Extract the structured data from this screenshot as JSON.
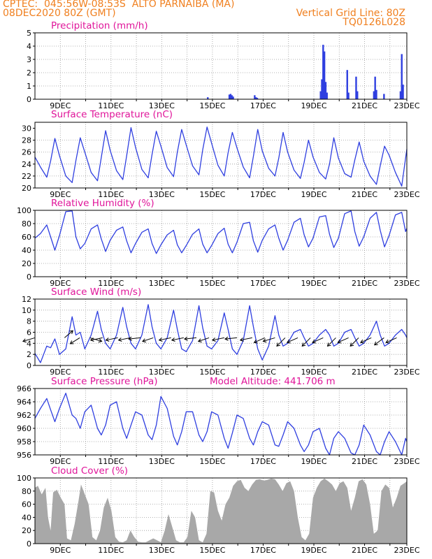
{
  "header": {
    "line1": "CPTEC:  045:56W-08:53S  ALTO PARNAIBA (MA)",
    "line2": "08DEC2020 80Z (GMT)",
    "grid_note": "Vertical Grid Line: 80Z",
    "code": "TQ0126L028"
  },
  "colors": {
    "header": "#f08020",
    "title": "#e0159a",
    "series": "#2f3fe0",
    "cloud": "#a8a8a8",
    "arrow": "#000000"
  },
  "x_axis": {
    "start": "08DEC2020 08Z",
    "end": "23DEC2020",
    "tick_labels": [
      "9DEC",
      "11DEC",
      "13DEC",
      "15DEC",
      "17DEC",
      "19DEC",
      "21DEC",
      "23DEC"
    ],
    "tick_days": [
      9,
      11,
      13,
      15,
      17,
      19,
      21,
      23
    ]
  },
  "chart_data": [
    {
      "id": "precip",
      "type": "bar",
      "title": "Precipitation (mm/h)",
      "ylim": [
        0,
        5
      ],
      "yticks": [
        0,
        1,
        2,
        3,
        4,
        5
      ],
      "x_unit": "day of Dec 2020",
      "bars": [
        {
          "x": 15.15,
          "y": 0.15
        },
        {
          "x": 16.0,
          "y": 0.35
        },
        {
          "x": 16.05,
          "y": 0.4
        },
        {
          "x": 16.1,
          "y": 0.3
        },
        {
          "x": 16.15,
          "y": 0.2
        },
        {
          "x": 17.0,
          "y": 0.3
        },
        {
          "x": 17.05,
          "y": 0.15
        },
        {
          "x": 17.1,
          "y": 0.1
        },
        {
          "x": 19.6,
          "y": 0.6
        },
        {
          "x": 19.65,
          "y": 1.5
        },
        {
          "x": 19.7,
          "y": 4.1
        },
        {
          "x": 19.75,
          "y": 3.6
        },
        {
          "x": 19.8,
          "y": 1.3
        },
        {
          "x": 19.85,
          "y": 0.5
        },
        {
          "x": 20.65,
          "y": 2.2
        },
        {
          "x": 20.7,
          "y": 0.5
        },
        {
          "x": 21.0,
          "y": 1.7
        },
        {
          "x": 21.05,
          "y": 0.6
        },
        {
          "x": 21.7,
          "y": 0.6
        },
        {
          "x": 21.75,
          "y": 1.7
        },
        {
          "x": 21.8,
          "y": 0.7
        },
        {
          "x": 22.1,
          "y": 0.4
        },
        {
          "x": 22.75,
          "y": 0.6
        },
        {
          "x": 22.8,
          "y": 3.4
        },
        {
          "x": 22.85,
          "y": 1.1
        }
      ]
    },
    {
      "id": "temp",
      "type": "line",
      "title": "Surface Temperature (nC)",
      "ylim": [
        20,
        31
      ],
      "yticks": [
        20,
        22,
        24,
        26,
        28,
        30
      ],
      "x": [
        8.33,
        8.55,
        8.8,
        8.95,
        9.12,
        9.3,
        9.55,
        9.8,
        9.95,
        10.12,
        10.3,
        10.55,
        10.8,
        10.95,
        11.12,
        11.3,
        11.55,
        11.8,
        11.95,
        12.12,
        12.3,
        12.55,
        12.8,
        12.95,
        13.12,
        13.3,
        13.55,
        13.8,
        13.95,
        14.12,
        14.3,
        14.55,
        14.8,
        14.95,
        15.12,
        15.3,
        15.55,
        15.8,
        15.95,
        16.12,
        16.3,
        16.55,
        16.8,
        16.95,
        17.12,
        17.3,
        17.55,
        17.8,
        17.95,
        18.12,
        18.3,
        18.55,
        18.8,
        18.95,
        19.12,
        19.3,
        19.55,
        19.8,
        19.95,
        20.12,
        20.3,
        20.55,
        20.8,
        20.95,
        21.12,
        21.3,
        21.55,
        21.8,
        21.95,
        22.12,
        22.3,
        22.55,
        22.8,
        22.95,
        23.0
      ],
      "y": [
        25.2,
        23.5,
        21.8,
        24.5,
        28.3,
        25.4,
        22.0,
        20.9,
        24.6,
        28.4,
        26.0,
        22.6,
        21.2,
        25.1,
        29.6,
        26.3,
        22.9,
        21.4,
        25.4,
        30.1,
        26.8,
        23.1,
        21.7,
        25.6,
        29.5,
        27.0,
        23.4,
        21.9,
        26.0,
        29.8,
        27.2,
        23.7,
        22.2,
        26.4,
        30.2,
        27.5,
        23.8,
        22.0,
        25.9,
        29.3,
        26.7,
        23.5,
        21.7,
        25.3,
        29.8,
        26.2,
        23.3,
        22.0,
        25.0,
        29.3,
        26.0,
        23.0,
        21.6,
        24.3,
        28.0,
        25.2,
        22.6,
        21.5,
        24.0,
        28.4,
        25.0,
        22.4,
        21.8,
        24.7,
        27.7,
        24.5,
        22.0,
        20.6,
        23.7,
        27.0,
        25.5,
        22.6,
        20.3,
        25.0,
        26.5
      ]
    },
    {
      "id": "rh",
      "type": "line",
      "title": "Relative Humidity (%)",
      "ylim": [
        0,
        100
      ],
      "yticks": [
        0,
        20,
        40,
        60,
        80,
        100
      ],
      "x": [
        8.33,
        8.55,
        8.8,
        8.95,
        9.12,
        9.3,
        9.55,
        9.8,
        9.95,
        10.12,
        10.3,
        10.55,
        10.8,
        10.95,
        11.12,
        11.3,
        11.55,
        11.8,
        11.95,
        12.12,
        12.3,
        12.55,
        12.8,
        12.95,
        13.12,
        13.3,
        13.55,
        13.8,
        13.95,
        14.12,
        14.3,
        14.55,
        14.8,
        14.95,
        15.12,
        15.3,
        15.55,
        15.8,
        15.95,
        16.12,
        16.3,
        16.55,
        16.8,
        16.95,
        17.12,
        17.3,
        17.55,
        17.8,
        17.95,
        18.12,
        18.3,
        18.55,
        18.8,
        18.95,
        19.12,
        19.3,
        19.55,
        19.8,
        19.95,
        20.12,
        20.3,
        20.55,
        20.8,
        20.95,
        21.12,
        21.3,
        21.55,
        21.8,
        21.95,
        22.12,
        22.3,
        22.55,
        22.8,
        22.95,
        23.0
      ],
      "y": [
        58,
        65,
        78,
        60,
        40,
        62,
        98,
        99,
        60,
        42,
        50,
        72,
        78,
        57,
        38,
        55,
        70,
        75,
        54,
        36,
        50,
        67,
        72,
        50,
        35,
        48,
        63,
        70,
        48,
        36,
        47,
        64,
        72,
        49,
        36,
        47,
        65,
        73,
        49,
        36,
        52,
        80,
        82,
        54,
        37,
        55,
        72,
        78,
        58,
        40,
        55,
        82,
        88,
        63,
        45,
        58,
        90,
        92,
        64,
        44,
        58,
        95,
        99,
        68,
        46,
        60,
        88,
        97,
        70,
        45,
        62,
        93,
        97,
        68,
        73
      ]
    },
    {
      "id": "wind",
      "type": "line",
      "title": "Surface Wind (m/s)",
      "ylim": [
        0,
        12
      ],
      "yticks": [
        0,
        2,
        4,
        6,
        8,
        10,
        12
      ],
      "x": [
        8.33,
        8.55,
        8.8,
        8.95,
        9.12,
        9.3,
        9.55,
        9.8,
        9.95,
        10.12,
        10.3,
        10.55,
        10.8,
        10.95,
        11.12,
        11.3,
        11.55,
        11.8,
        11.95,
        12.12,
        12.3,
        12.55,
        12.8,
        12.95,
        13.12,
        13.3,
        13.55,
        13.8,
        13.95,
        14.12,
        14.3,
        14.55,
        14.8,
        14.95,
        15.12,
        15.3,
        15.55,
        15.8,
        15.95,
        16.12,
        16.3,
        16.55,
        16.8,
        16.95,
        17.12,
        17.3,
        17.55,
        17.8,
        17.95,
        18.12,
        18.3,
        18.55,
        18.8,
        18.95,
        19.12,
        19.3,
        19.55,
        19.8,
        19.95,
        20.12,
        20.3,
        20.55,
        20.8,
        20.95,
        21.12,
        21.3,
        21.55,
        21.8,
        21.95,
        22.12,
        22.3,
        22.55,
        22.8,
        22.95,
        23.0
      ],
      "y": [
        2.2,
        0.5,
        3.5,
        3.2,
        4.8,
        2.0,
        3.0,
        8.8,
        5.5,
        6.0,
        3.0,
        5.5,
        9.8,
        6.5,
        4.0,
        3.0,
        5.5,
        10.5,
        7.0,
        4.0,
        3.0,
        5.5,
        11.0,
        7.0,
        4.0,
        3.0,
        5.0,
        10.0,
        6.5,
        3.0,
        2.5,
        4.5,
        10.8,
        6.8,
        3.5,
        3.0,
        4.5,
        9.5,
        6.5,
        3.0,
        2.0,
        4.5,
        10.8,
        7.0,
        3.0,
        1.0,
        3.5,
        9.0,
        5.5,
        3.5,
        4.0,
        6.0,
        6.5,
        5.0,
        3.5,
        4.0,
        5.5,
        6.5,
        5.5,
        3.5,
        4.0,
        6.0,
        6.5,
        5.0,
        3.5,
        4.0,
        5.5,
        8.0,
        5.5,
        3.5,
        4.0,
        5.5,
        6.5,
        5.5,
        5.0
      ],
      "arrows": [
        {
          "x": 8.33,
          "u": 1.0,
          "v": 0.3
        },
        {
          "x": 9.5,
          "u": -0.7,
          "v": -0.6
        },
        {
          "x": 10.1,
          "u": 0.8,
          "v": 0.5
        },
        {
          "x": 10.5,
          "u": -1.0,
          "v": 0.3
        },
        {
          "x": 11.0,
          "u": 1.0,
          "v": 0.2
        },
        {
          "x": 11.6,
          "u": 1.0,
          "v": 0.2
        },
        {
          "x": 12.1,
          "u": 1.0,
          "v": 0.2
        },
        {
          "x": 12.5,
          "u": 1.0,
          "v": 0.1
        },
        {
          "x": 13.0,
          "u": 0.9,
          "v": 0.3
        },
        {
          "x": 13.7,
          "u": 1.0,
          "v": 0.2
        },
        {
          "x": 14.2,
          "u": 1.0,
          "v": 0.2
        },
        {
          "x": 14.7,
          "u": 1.0,
          "v": 0.1
        },
        {
          "x": 15.2,
          "u": 0.9,
          "v": 0.3
        },
        {
          "x": 15.8,
          "u": 1.0,
          "v": 0.2
        },
        {
          "x": 16.3,
          "u": 1.0,
          "v": 0.1
        },
        {
          "x": 16.9,
          "u": 1.0,
          "v": 0.2
        },
        {
          "x": 17.4,
          "u": 0.9,
          "v": 0.4
        },
        {
          "x": 17.8,
          "u": 1.0,
          "v": 0.3
        },
        {
          "x": 18.2,
          "u": 0.7,
          "v": 0.7
        },
        {
          "x": 18.7,
          "u": 0.9,
          "v": 0.4
        },
        {
          "x": 19.2,
          "u": 0.7,
          "v": 0.7
        },
        {
          "x": 19.7,
          "u": 0.9,
          "v": 0.4
        },
        {
          "x": 20.2,
          "u": 0.7,
          "v": 0.7
        },
        {
          "x": 20.7,
          "u": 0.9,
          "v": 0.4
        },
        {
          "x": 21.1,
          "u": 0.7,
          "v": 0.7
        },
        {
          "x": 21.6,
          "u": 0.9,
          "v": 0.4
        },
        {
          "x": 22.1,
          "u": 0.8,
          "v": 0.6
        },
        {
          "x": 22.6,
          "u": 0.9,
          "v": 0.4
        }
      ]
    },
    {
      "id": "pres",
      "type": "line",
      "title": "Surface Pressure (hPa)",
      "subtitle": "Model Altitude: 441.706 m",
      "ylim": [
        956,
        966
      ],
      "yticks": [
        956,
        958,
        960,
        962,
        964,
        966
      ],
      "x": [
        8.33,
        8.55,
        8.8,
        8.95,
        9.12,
        9.3,
        9.55,
        9.8,
        9.95,
        10.12,
        10.3,
        10.55,
        10.8,
        10.95,
        11.12,
        11.3,
        11.55,
        11.8,
        11.95,
        12.12,
        12.3,
        12.55,
        12.8,
        12.95,
        13.12,
        13.3,
        13.55,
        13.8,
        13.95,
        14.12,
        14.3,
        14.55,
        14.8,
        14.95,
        15.12,
        15.3,
        15.55,
        15.8,
        15.95,
        16.12,
        16.3,
        16.55,
        16.8,
        16.95,
        17.12,
        17.3,
        17.55,
        17.8,
        17.95,
        18.12,
        18.3,
        18.55,
        18.8,
        18.95,
        19.12,
        19.3,
        19.55,
        19.8,
        19.95,
        20.12,
        20.3,
        20.55,
        20.8,
        20.95,
        21.12,
        21.3,
        21.55,
        21.8,
        21.95,
        22.12,
        22.3,
        22.55,
        22.8,
        22.95,
        23.0
      ],
      "y": [
        961.5,
        963.0,
        964.5,
        962.8,
        961.0,
        963.0,
        965.3,
        962.0,
        961.5,
        960.0,
        962.5,
        963.5,
        960.0,
        959.0,
        960.5,
        963.5,
        964.0,
        960.0,
        958.5,
        960.5,
        962.5,
        962.0,
        959.0,
        958.3,
        960.5,
        964.8,
        963.0,
        958.8,
        957.5,
        959.5,
        962.5,
        962.5,
        959.0,
        958.0,
        959.5,
        962.5,
        962.0,
        958.5,
        957.0,
        959.3,
        962.0,
        961.5,
        958.5,
        957.5,
        959.5,
        961.0,
        960.5,
        957.5,
        957.3,
        959.0,
        961.0,
        960.0,
        957.5,
        956.5,
        957.5,
        959.5,
        960.0,
        957.0,
        956.0,
        958.5,
        959.5,
        958.5,
        956.3,
        956.0,
        957.5,
        960.5,
        959.0,
        956.5,
        956.0,
        958.0,
        959.5,
        958.0,
        956.0,
        958.5,
        958.0
      ]
    },
    {
      "id": "cloud",
      "type": "area",
      "title": "Cloud Cover (%)",
      "ylim": [
        0,
        100
      ],
      "yticks": [
        0,
        20,
        40,
        60,
        80,
        100
      ],
      "x": [
        8.33,
        8.45,
        8.6,
        8.75,
        8.85,
        8.95,
        9.05,
        9.2,
        9.35,
        9.5,
        9.6,
        9.75,
        9.9,
        10.05,
        10.15,
        10.3,
        10.45,
        10.6,
        10.75,
        10.9,
        11.05,
        11.2,
        11.35,
        11.5,
        11.65,
        11.8,
        11.95,
        12.1,
        12.25,
        12.4,
        12.55,
        12.7,
        12.85,
        13.0,
        13.15,
        13.3,
        13.45,
        13.6,
        13.75,
        13.9,
        14.05,
        14.2,
        14.35,
        14.5,
        14.65,
        14.8,
        14.95,
        15.1,
        15.25,
        15.4,
        15.55,
        15.7,
        15.85,
        16.0,
        16.15,
        16.3,
        16.45,
        16.6,
        16.75,
        16.9,
        17.05,
        17.2,
        17.35,
        17.5,
        17.65,
        17.8,
        17.95,
        18.1,
        18.25,
        18.4,
        18.55,
        18.7,
        18.85,
        19.0,
        19.15,
        19.3,
        19.45,
        19.6,
        19.75,
        19.9,
        20.05,
        20.2,
        20.35,
        20.5,
        20.65,
        20.8,
        20.95,
        21.1,
        21.25,
        21.4,
        21.55,
        21.7,
        21.85,
        22.0,
        22.15,
        22.3,
        22.45,
        22.6,
        22.75,
        22.9,
        23.0
      ],
      "y": [
        85,
        88,
        75,
        85,
        40,
        20,
        78,
        82,
        70,
        60,
        8,
        5,
        30,
        65,
        90,
        75,
        60,
        10,
        5,
        20,
        55,
        70,
        50,
        10,
        3,
        2,
        5,
        20,
        10,
        3,
        2,
        2,
        5,
        8,
        5,
        2,
        20,
        45,
        25,
        5,
        2,
        2,
        10,
        50,
        40,
        5,
        2,
        15,
        80,
        78,
        50,
        35,
        60,
        70,
        88,
        95,
        97,
        85,
        80,
        90,
        97,
        98,
        96,
        97,
        99,
        98,
        90,
        80,
        92,
        95,
        80,
        40,
        10,
        5,
        15,
        70,
        85,
        95,
        99,
        95,
        90,
        80,
        92,
        95,
        85,
        50,
        70,
        95,
        98,
        90,
        60,
        15,
        20,
        80,
        90,
        85,
        55,
        70,
        88,
        92,
        95
      ]
    }
  ]
}
